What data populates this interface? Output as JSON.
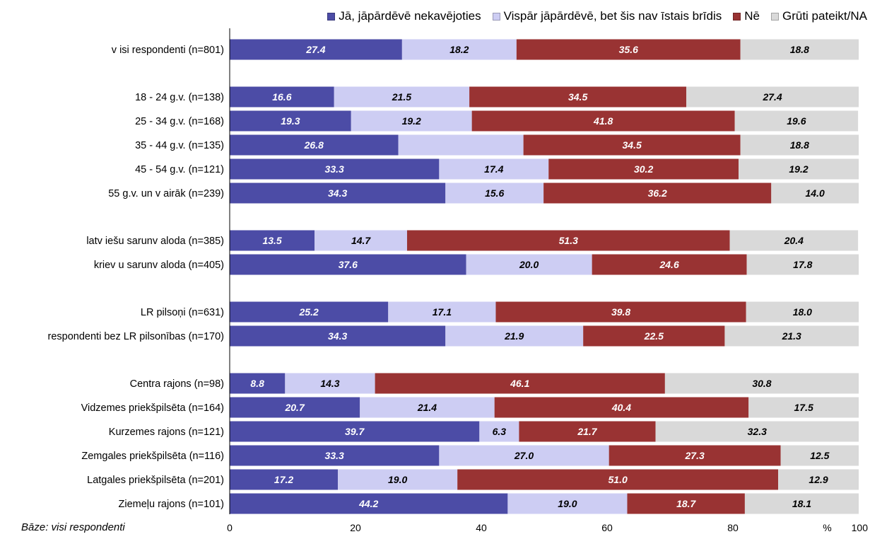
{
  "chart_data": {
    "type": "bar",
    "orientation": "horizontal",
    "stacked": true,
    "title": "",
    "xlabel": "",
    "x_unit_label": "%",
    "xlim": [
      0,
      100
    ],
    "x_ticks": [
      "0",
      "20",
      "40",
      "60",
      "80",
      "100"
    ],
    "grid": false,
    "legend_position": "top",
    "footnote": "Bāze: visi respondenti",
    "series": [
      {
        "name": "Jā, jāpārdēvē nekavējoties",
        "color": "#4c4ca6"
      },
      {
        "name": "Vispār jāpārdēvē, bet šis nav īstais brīdis",
        "color": "#cdcdf3"
      },
      {
        "name": "Nē",
        "color": "#993333"
      },
      {
        "name": "Grūti pateikt/NA",
        "color": "#d9d9d9"
      }
    ],
    "categories": [
      {
        "label": "v isi respondenti (n=801)",
        "group": 0,
        "values": [
          27.4,
          18.2,
          35.6,
          18.8
        ],
        "labels": [
          "27.4",
          "18.2",
          "35.6",
          "18.8"
        ]
      },
      {
        "label": "18 - 24 g.v. (n=138)",
        "group": 1,
        "values": [
          16.6,
          21.5,
          34.5,
          27.4
        ],
        "labels": [
          "16.6",
          "21.5",
          "34.5",
          "27.4"
        ]
      },
      {
        "label": "25 - 34 g.v. (n=168)",
        "group": 1,
        "values": [
          19.3,
          19.2,
          41.8,
          19.6
        ],
        "labels": [
          "19.3",
          "19.2",
          "41.8",
          "19.6"
        ]
      },
      {
        "label": "35 - 44 g.v. (n=135)",
        "group": 1,
        "values": [
          26.8,
          19.9,
          34.5,
          18.8
        ],
        "labels": [
          "26.8",
          "",
          "34.5",
          "18.8"
        ]
      },
      {
        "label": "45 - 54 g.v. (n=121)",
        "group": 1,
        "values": [
          33.3,
          17.4,
          30.2,
          19.2
        ],
        "labels": [
          "33.3",
          "17.4",
          "30.2",
          "19.2"
        ]
      },
      {
        "label": "55 g.v. un v airāk (n=239)",
        "group": 1,
        "values": [
          34.3,
          15.6,
          36.2,
          14.0
        ],
        "labels": [
          "34.3",
          "15.6",
          "36.2",
          "14.0"
        ]
      },
      {
        "label": "latv iešu sarunv aloda (n=385)",
        "group": 2,
        "values": [
          13.5,
          14.7,
          51.3,
          20.4
        ],
        "labels": [
          "13.5",
          "14.7",
          "51.3",
          "20.4"
        ]
      },
      {
        "label": "kriev u sarunv aloda (n=405)",
        "group": 2,
        "values": [
          37.6,
          20.0,
          24.6,
          17.8
        ],
        "labels": [
          "37.6",
          "20.0",
          "24.6",
          "17.8"
        ]
      },
      {
        "label": "LR pilsoņi (n=631)",
        "group": 3,
        "values": [
          25.2,
          17.1,
          39.8,
          18.0
        ],
        "labels": [
          "25.2",
          "17.1",
          "39.8",
          "18.0"
        ]
      },
      {
        "label": "respondenti bez LR pilsonības (n=170)",
        "group": 3,
        "values": [
          34.3,
          21.9,
          22.5,
          21.3
        ],
        "labels": [
          "34.3",
          "21.9",
          "22.5",
          "21.3"
        ]
      },
      {
        "label": "Centra rajons (n=98)",
        "group": 4,
        "values": [
          8.8,
          14.3,
          46.1,
          30.8
        ],
        "labels": [
          "8.8",
          "14.3",
          "46.1",
          "30.8"
        ]
      },
      {
        "label": "Vidzemes priekšpilsēta (n=164)",
        "group": 4,
        "values": [
          20.7,
          21.4,
          40.4,
          17.5
        ],
        "labels": [
          "20.7",
          "21.4",
          "40.4",
          "17.5"
        ]
      },
      {
        "label": "Kurzemes rajons (n=121)",
        "group": 4,
        "values": [
          39.7,
          6.3,
          21.7,
          32.3
        ],
        "labels": [
          "39.7",
          "6.3",
          "21.7",
          "32.3"
        ]
      },
      {
        "label": "Zemgales priekšpilsēta (n=116)",
        "group": 4,
        "values": [
          33.3,
          27.0,
          27.3,
          12.5
        ],
        "labels": [
          "33.3",
          "27.0",
          "27.3",
          "12.5"
        ]
      },
      {
        "label": "Latgales priekšpilsēta (n=201)",
        "group": 4,
        "values": [
          17.2,
          19.0,
          51.0,
          12.9
        ],
        "labels": [
          "17.2",
          "19.0",
          "51.0",
          "12.9"
        ]
      },
      {
        "label": "Ziemeļu rajons (n=101)",
        "group": 4,
        "values": [
          44.2,
          19.0,
          18.7,
          18.1
        ],
        "labels": [
          "44.2",
          "19.0",
          "18.7",
          "18.1"
        ]
      }
    ]
  }
}
